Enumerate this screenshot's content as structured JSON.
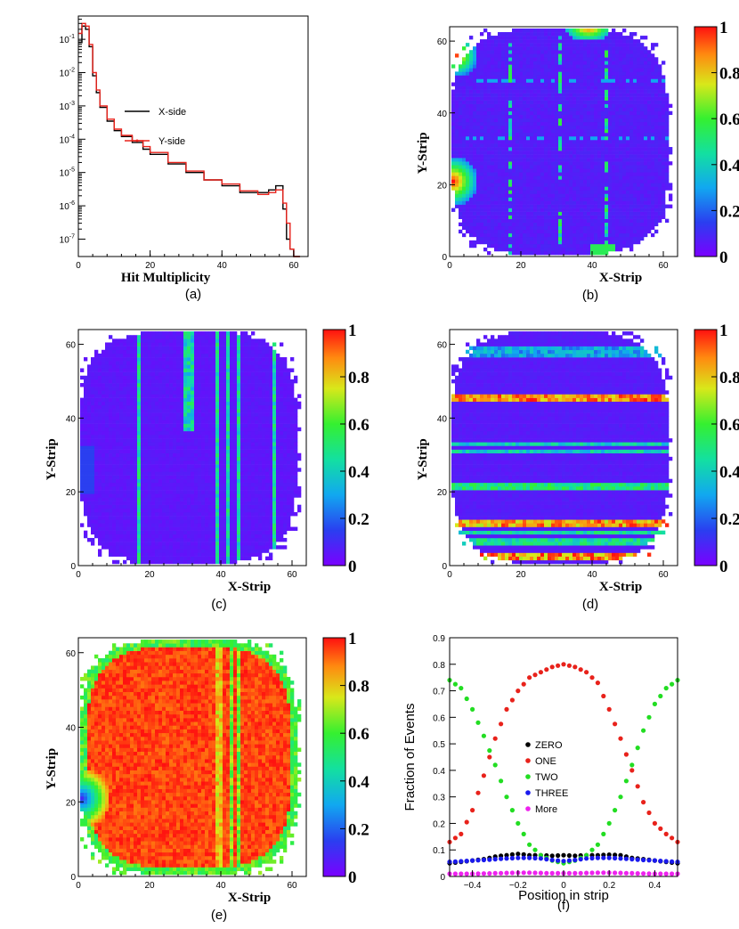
{
  "colors": {
    "x_side": "#000000",
    "y_side": "#e8221b",
    "zero": "#000000",
    "one": "#e8221b",
    "two": "#22dd22",
    "three": "#1a1aee",
    "more": "#ee22ee"
  },
  "colorbar": {
    "ticks": [
      "0",
      "0.2",
      "0.4",
      "0.6",
      "0.8",
      "1"
    ],
    "palette": "rainbow (purple → blue → cyan → green → yellow → red)"
  },
  "chart_data": [
    {
      "panel_label": "(a)",
      "type": "line",
      "xlabel": "Hit Multiplicity",
      "ylabel": "",
      "xlim": [
        0,
        64
      ],
      "ylim": [
        3e-08,
        0.5
      ],
      "yscale": "log",
      "x_ticks": [
        "0",
        "20",
        "40",
        "60"
      ],
      "y_ticks": [
        "10^-7",
        "10^-6",
        "10^-5",
        "10^-4",
        "10^-3",
        "10^-2",
        "10^-1"
      ],
      "legend": [
        "X-side",
        "Y-side"
      ],
      "legend_position": "center",
      "series": [
        {
          "name": "X-side",
          "x": [
            0,
            1,
            2,
            3,
            4,
            5,
            6,
            8,
            10,
            12,
            15,
            18,
            20,
            25,
            30,
            35,
            40,
            45,
            50,
            53,
            55,
            57,
            58,
            59,
            60,
            61
          ],
          "y": [
            0.08,
            0.25,
            0.2,
            0.06,
            0.008,
            0.0025,
            0.0009,
            0.00035,
            0.00018,
            0.00012,
            8e-05,
            5e-05,
            3.5e-05,
            1.8e-05,
            1e-05,
            6e-06,
            4e-06,
            2.5e-06,
            2.5e-06,
            3e-06,
            4e-06,
            8e-07,
            1e-07,
            5e-08,
            3e-08,
            3e-08
          ]
        },
        {
          "name": "Y-side",
          "x": [
            0,
            1,
            2,
            3,
            4,
            5,
            6,
            8,
            10,
            12,
            15,
            18,
            20,
            25,
            30,
            35,
            40,
            45,
            50,
            53,
            55,
            57,
            58,
            59,
            60,
            61
          ],
          "y": [
            0.15,
            0.3,
            0.25,
            0.07,
            0.01,
            0.003,
            0.001,
            0.0004,
            0.0002,
            0.00013,
            9e-05,
            6e-05,
            4e-05,
            2e-05,
            1.1e-05,
            6e-06,
            4.5e-06,
            2.8e-06,
            2.2e-06,
            2.5e-06,
            3e-06,
            1.2e-06,
            3e-07,
            5e-08,
            3e-08,
            3e-08
          ]
        }
      ]
    },
    {
      "panel_label": "(b)",
      "type": "heatmap",
      "xlabel": "X-Strip",
      "ylabel": "Y-Strip",
      "xlim": [
        0,
        64
      ],
      "ylim": [
        0,
        64
      ],
      "x_ticks": [
        "0",
        "20",
        "40",
        "60"
      ],
      "y_ticks": [
        "0",
        "20",
        "40",
        "60"
      ],
      "zlim": [
        0,
        1
      ],
      "pattern": "mostly ~0.05 with red/orange hot regions along left edge near y=20 and y=55, top near x=37, cyan vertical streaks at x≈16,30,43",
      "values_note": "per-strip fractions range 0–1"
    },
    {
      "panel_label": "(c)",
      "type": "heatmap",
      "xlabel": "X-Strip",
      "ylabel": "Y-Strip",
      "xlim": [
        0,
        64
      ],
      "ylim": [
        0,
        64
      ],
      "x_ticks": [
        "0",
        "20",
        "40",
        "60"
      ],
      "y_ticks": [
        "0",
        "20",
        "40",
        "60"
      ],
      "zlim": [
        0,
        1
      ],
      "pattern": "mostly ~0.05 with cyan/green vertical streaks at x≈16, 29-31, 38, 41-44, 54"
    },
    {
      "panel_label": "(d)",
      "type": "heatmap",
      "xlabel": "X-Strip",
      "ylabel": "Y-Strip",
      "xlim": [
        0,
        64
      ],
      "ylim": [
        0,
        64
      ],
      "x_ticks": [
        "0",
        "20",
        "40",
        "60"
      ],
      "y_ticks": [
        "0",
        "20",
        "40",
        "60"
      ],
      "zlim": [
        0,
        1
      ],
      "pattern": "horizontal bands: red/yellow at y≈44-45, 9-12, 1-3; cyan at y≈30-32, 20-21, 5-7"
    },
    {
      "panel_label": "(e)",
      "type": "heatmap",
      "xlabel": "X-Strip",
      "ylabel": "Y-Strip",
      "xlim": [
        0,
        64
      ],
      "ylim": [
        0,
        64
      ],
      "x_ticks": [
        "0",
        "20",
        "40",
        "60"
      ],
      "y_ticks": [
        "0",
        "20",
        "40",
        "60"
      ],
      "zlim": [
        0,
        1
      ],
      "pattern": "mostly ~0.95 (red) with blue/green arc at left edge near y=20, yellow/green vertical streaks at x≈38-44, green edges"
    },
    {
      "panel_label": "(f)",
      "type": "scatter",
      "xlabel": "Position in strip",
      "ylabel": "Fraction of Events",
      "xlim": [
        -0.5,
        0.5
      ],
      "ylim": [
        0,
        0.9
      ],
      "x_ticks": [
        "−0.4",
        "−0.2",
        "0",
        "0.2",
        "0.4"
      ],
      "y_ticks": [
        "0",
        "0.1",
        "0.2",
        "0.3",
        "0.4",
        "0.5",
        "0.6",
        "0.7",
        "0.8",
        "0.9"
      ],
      "legend": [
        "ZERO",
        "ONE",
        "TWO",
        "THREE",
        "More"
      ],
      "legend_position": "center-left",
      "series": [
        {
          "name": "ZERO",
          "x": [
            -0.5,
            -0.45,
            -0.4,
            -0.35,
            -0.3,
            -0.25,
            -0.2,
            -0.15,
            -0.1,
            -0.05,
            0,
            0.05,
            0.1,
            0.15,
            0.2,
            0.25,
            0.3,
            0.35,
            0.4,
            0.45,
            0.5
          ],
          "y": [
            0.05,
            0.055,
            0.06,
            0.065,
            0.075,
            0.08,
            0.085,
            0.08,
            0.08,
            0.078,
            0.08,
            0.078,
            0.08,
            0.08,
            0.082,
            0.08,
            0.07,
            0.065,
            0.06,
            0.055,
            0.05
          ]
        },
        {
          "name": "ONE",
          "x": [
            -0.5,
            -0.45,
            -0.4,
            -0.35,
            -0.3,
            -0.25,
            -0.2,
            -0.15,
            -0.1,
            -0.05,
            0,
            0.05,
            0.1,
            0.15,
            0.2,
            0.25,
            0.3,
            0.35,
            0.4,
            0.45,
            0.5
          ],
          "y": [
            0.13,
            0.16,
            0.25,
            0.38,
            0.52,
            0.63,
            0.7,
            0.75,
            0.77,
            0.79,
            0.8,
            0.79,
            0.77,
            0.73,
            0.63,
            0.52,
            0.4,
            0.28,
            0.2,
            0.16,
            0.13
          ]
        },
        {
          "name": "TWO",
          "x": [
            -0.5,
            -0.45,
            -0.4,
            -0.35,
            -0.3,
            -0.25,
            -0.2,
            -0.15,
            -0.1,
            -0.05,
            0,
            0.05,
            0.1,
            0.15,
            0.2,
            0.25,
            0.3,
            0.35,
            0.4,
            0.45,
            0.5
          ],
          "y": [
            0.74,
            0.71,
            0.63,
            0.53,
            0.42,
            0.3,
            0.2,
            0.12,
            0.08,
            0.06,
            0.05,
            0.06,
            0.08,
            0.12,
            0.2,
            0.3,
            0.42,
            0.55,
            0.65,
            0.71,
            0.74
          ]
        },
        {
          "name": "THREE",
          "x": [
            -0.5,
            -0.45,
            -0.4,
            -0.35,
            -0.3,
            -0.25,
            -0.2,
            -0.15,
            -0.1,
            -0.05,
            0,
            0.05,
            0.1,
            0.15,
            0.2,
            0.25,
            0.3,
            0.35,
            0.4,
            0.45,
            0.5
          ],
          "y": [
            0.055,
            0.057,
            0.06,
            0.062,
            0.065,
            0.068,
            0.07,
            0.07,
            0.068,
            0.062,
            0.058,
            0.062,
            0.068,
            0.07,
            0.07,
            0.068,
            0.065,
            0.062,
            0.06,
            0.057,
            0.055
          ]
        },
        {
          "name": "More",
          "x": [
            -0.5,
            -0.45,
            -0.4,
            -0.35,
            -0.3,
            -0.25,
            -0.2,
            -0.15,
            -0.1,
            -0.05,
            0,
            0.05,
            0.1,
            0.15,
            0.2,
            0.25,
            0.3,
            0.35,
            0.4,
            0.45,
            0.5
          ],
          "y": [
            0.01,
            0.01,
            0.01,
            0.011,
            0.012,
            0.013,
            0.014,
            0.014,
            0.013,
            0.012,
            0.012,
            0.012,
            0.013,
            0.014,
            0.014,
            0.013,
            0.012,
            0.011,
            0.01,
            0.01,
            0.01
          ]
        }
      ]
    }
  ]
}
